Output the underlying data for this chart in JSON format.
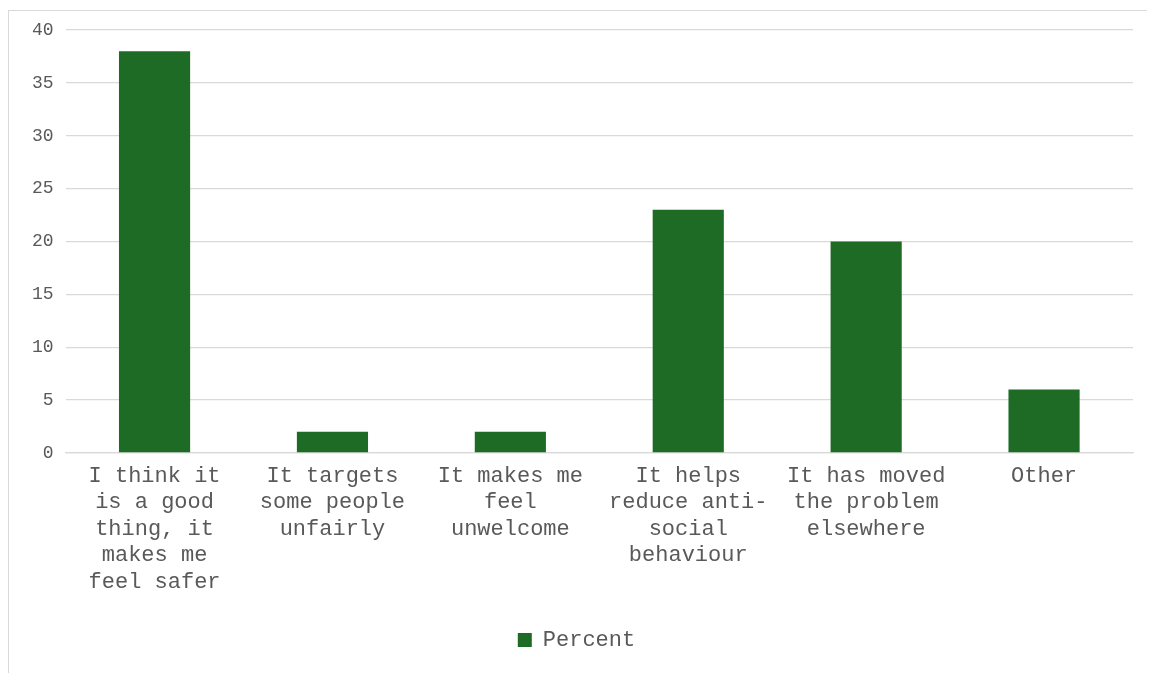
{
  "chart_data": {
    "type": "bar",
    "categories": [
      "I think it is a good thing, it makes me feel safer",
      "It targets some people unfairly",
      "It makes me feel unwelcome",
      "It helps reduce anti-social behaviour",
      "It has moved the problem elsewhere",
      "Other"
    ],
    "series": [
      {
        "name": "Percent",
        "color": "#1e6b26",
        "values": [
          38,
          2,
          2,
          23,
          20,
          6
        ]
      }
    ],
    "ylim": [
      0,
      40
    ],
    "yticks": [
      0,
      5,
      10,
      15,
      20,
      25,
      30,
      35,
      40
    ],
    "grid": "y",
    "legend": "bottom"
  }
}
